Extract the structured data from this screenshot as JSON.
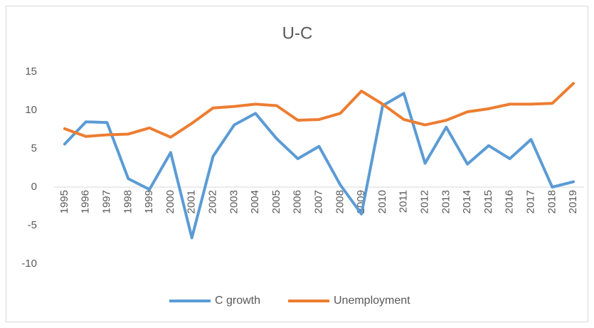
{
  "chart_data": {
    "type": "line",
    "title": "U-C",
    "categories": [
      "1995",
      "1996",
      "1997",
      "1998",
      "1999",
      "2000",
      "2001",
      "2002",
      "2003",
      "2004",
      "2005",
      "2006",
      "2007",
      "2008",
      "2009",
      "2010",
      "2011",
      "2012",
      "2013",
      "2014",
      "2015",
      "2016",
      "2017",
      "2018",
      "2019"
    ],
    "series": [
      {
        "name": "C growth",
        "color": "#5b9bd5",
        "values": [
          5.6,
          8.5,
          8.4,
          1.1,
          -0.3,
          4.5,
          -6.6,
          4.0,
          8.1,
          9.6,
          6.3,
          3.7,
          5.3,
          0.3,
          -3.5,
          10.6,
          12.2,
          3.1,
          7.8,
          3.0,
          5.4,
          3.7,
          6.2,
          0.0,
          0.7
        ]
      },
      {
        "name": "Unemployment",
        "color": "#ed7d31",
        "values": [
          7.6,
          6.6,
          6.8,
          6.9,
          7.7,
          6.5,
          8.3,
          10.3,
          10.5,
          10.8,
          10.6,
          8.7,
          8.8,
          9.6,
          12.5,
          10.8,
          8.8,
          8.1,
          8.7,
          9.8,
          10.2,
          10.8,
          10.8,
          10.9,
          13.5
        ]
      }
    ],
    "ylim": [
      -10,
      15
    ],
    "yticks": [
      -10,
      -5,
      0,
      5,
      10,
      15
    ],
    "grid": false,
    "legend": "bottom"
  }
}
